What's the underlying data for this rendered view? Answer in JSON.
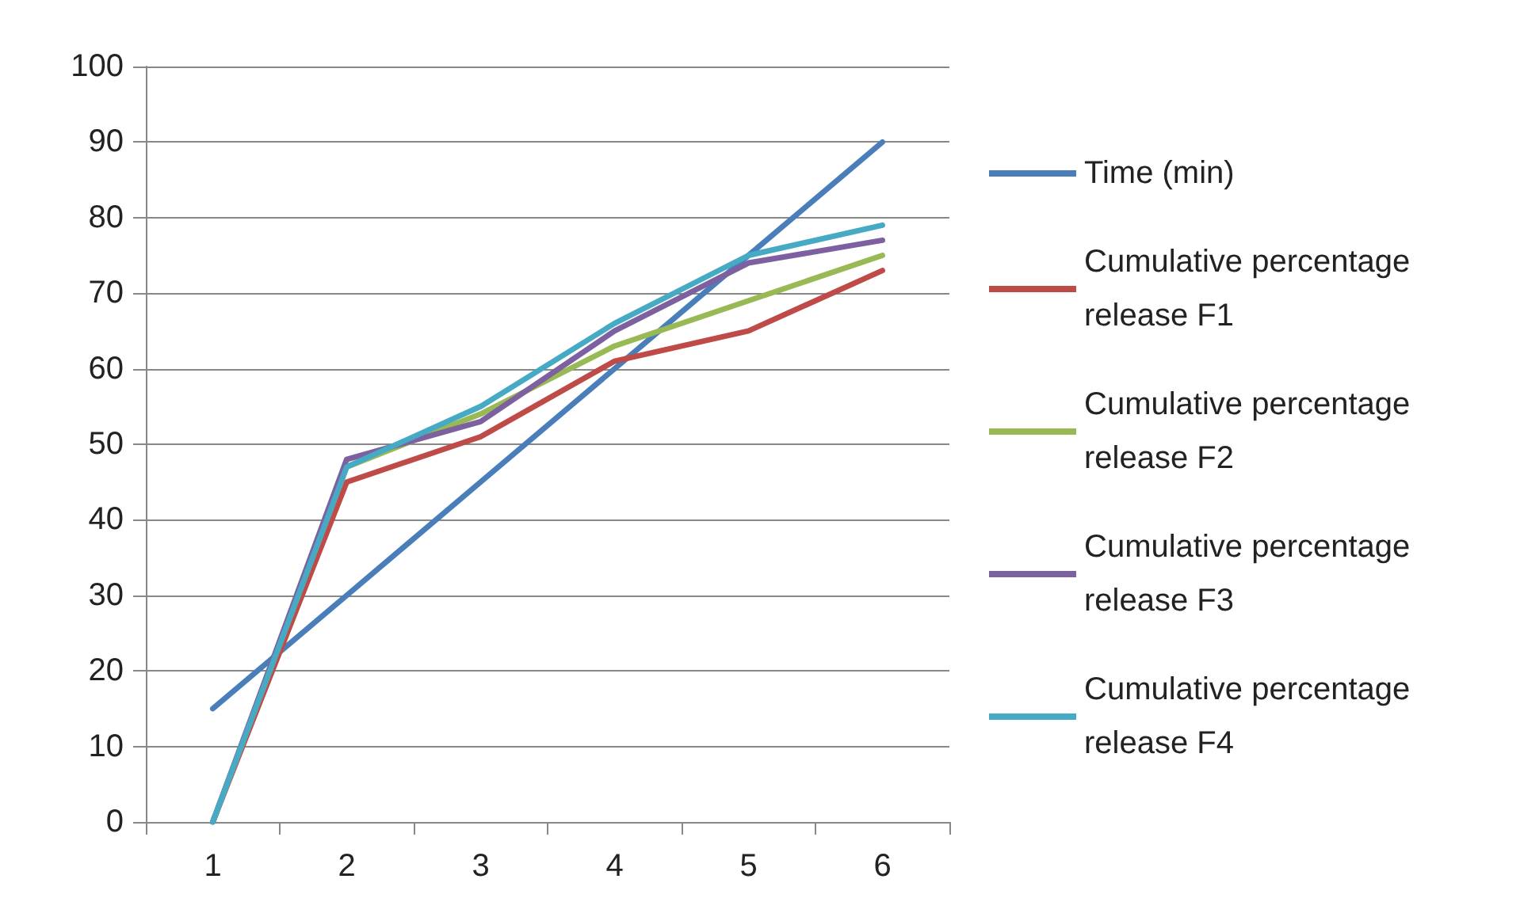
{
  "chart_data": {
    "type": "line",
    "categories": [
      "1",
      "2",
      "3",
      "4",
      "5",
      "6"
    ],
    "series": [
      {
        "name": "Time (min)",
        "color": "#4a7ebb",
        "values": [
          15,
          30,
          45,
          60,
          75,
          90
        ]
      },
      {
        "name": "Cumulative percentage release F1",
        "color": "#be4b48",
        "values": [
          0,
          45,
          51,
          61,
          65,
          73
        ]
      },
      {
        "name": "Cumulative percentage release F2",
        "color": "#98b954",
        "values": [
          0,
          47,
          54,
          63,
          69,
          75
        ]
      },
      {
        "name": "Cumulative percentage release F3",
        "color": "#7d60a0",
        "values": [
          0,
          48,
          53,
          65,
          74,
          77
        ]
      },
      {
        "name": "Cumulative percentage release F4",
        "color": "#46aac5",
        "values": [
          0,
          47,
          55,
          66,
          75,
          79
        ]
      }
    ],
    "ylim": [
      0,
      100
    ],
    "yticks": [
      0,
      10,
      20,
      30,
      40,
      50,
      60,
      70,
      80,
      90,
      100
    ],
    "grid": "y",
    "legend": "right",
    "marker": "none",
    "line_style": "solid"
  }
}
